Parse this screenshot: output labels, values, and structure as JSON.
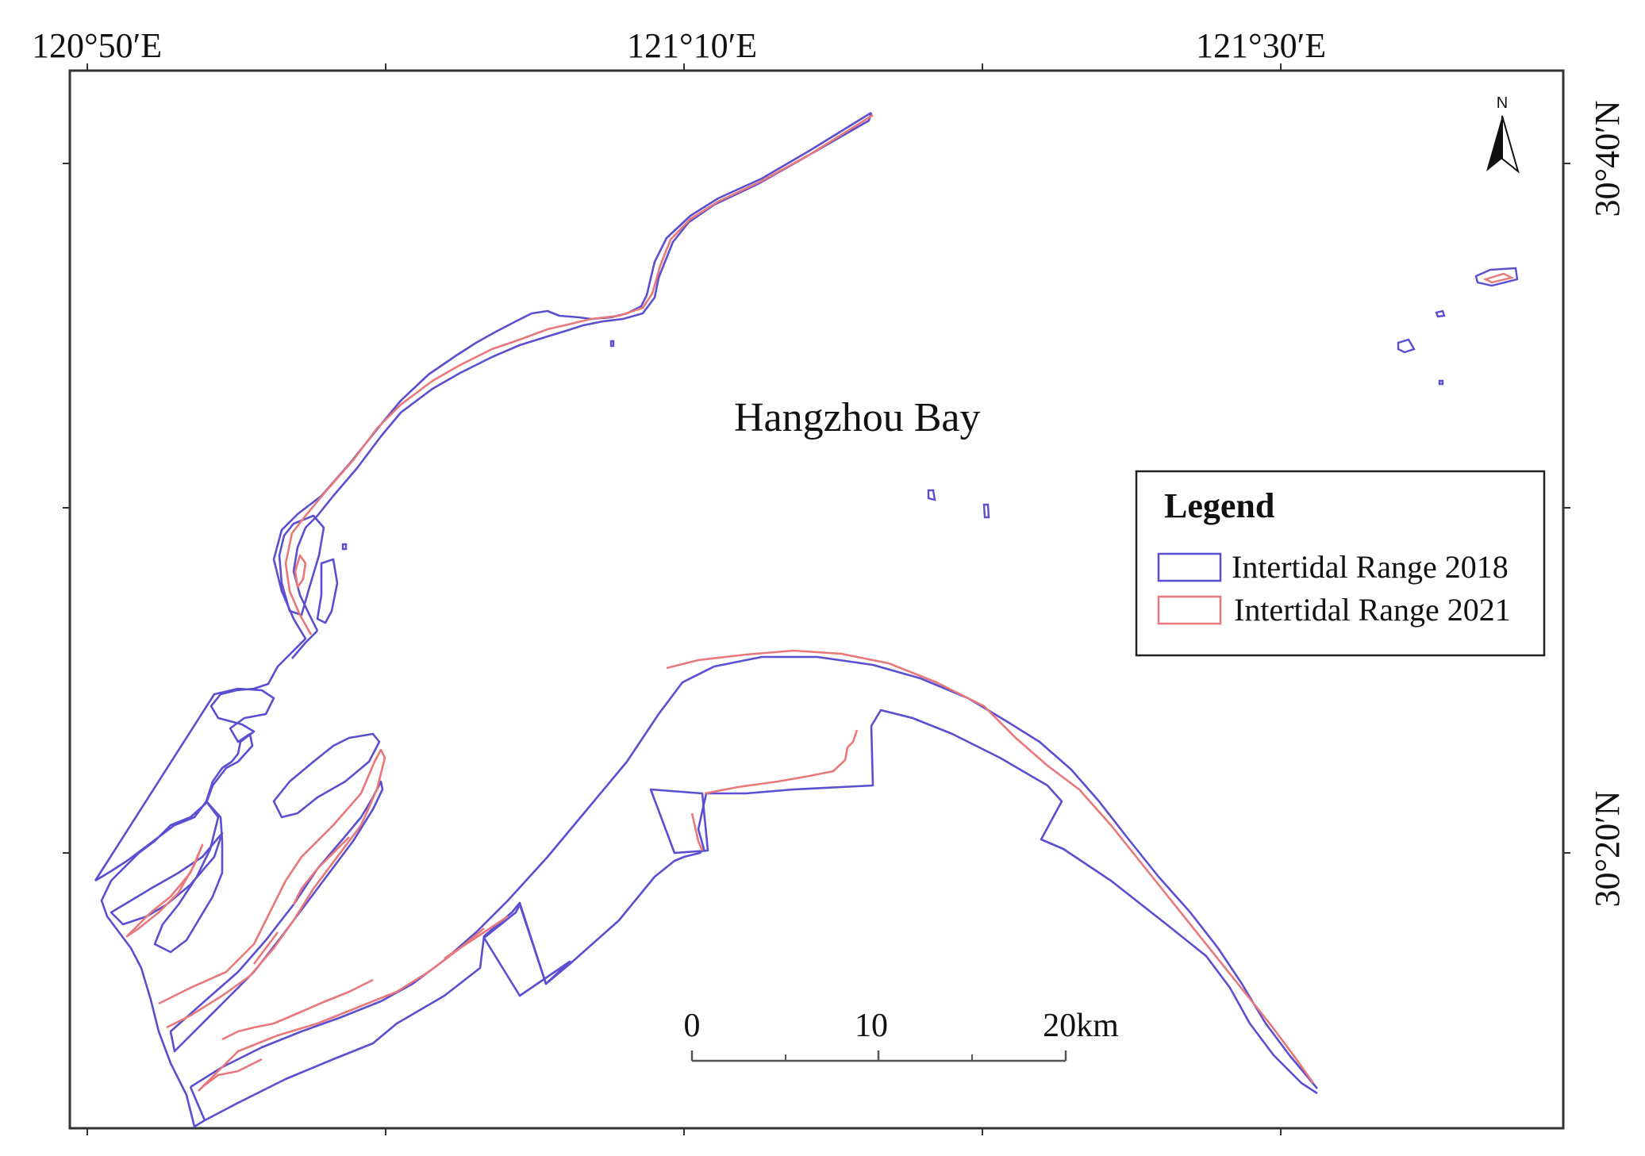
{
  "axes": {
    "top_labels": [
      "120°50′E",
      "121°10′E",
      "121°30′E"
    ],
    "right_labels": [
      "30°40′N",
      "30°20′N"
    ]
  },
  "place_label": "Hangzhou Bay",
  "north_arrow": {
    "label": "N",
    "icon": "north-arrow-icon"
  },
  "scale_bar": {
    "labels": [
      "0",
      "10",
      "20km"
    ]
  },
  "legend": {
    "title": "Legend",
    "items": [
      {
        "label": "Intertidal Range 2018",
        "color": "#5a4fd0"
      },
      {
        "label": "Intertidal Range 2021",
        "color": "#e8787a"
      }
    ]
  },
  "colors": {
    "range_2018": "#5a4fd0",
    "range_2021": "#e8787a",
    "frame": "#333333"
  }
}
